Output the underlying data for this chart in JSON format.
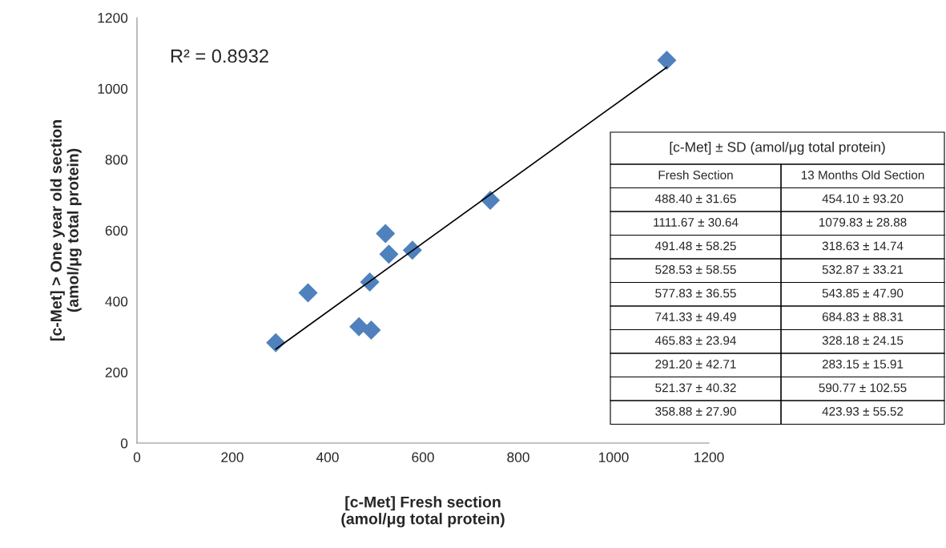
{
  "chart_data": {
    "type": "scatter",
    "xlabel": "[c-Met] Fresh section\n(amol/μg total protein)",
    "ylabel": "[c-Met] > One year old section\n(amol/μg total protein)",
    "xlim": [
      0,
      1200
    ],
    "xticks": [
      0,
      200,
      400,
      600,
      800,
      1000,
      1200
    ],
    "ylim": [
      0,
      1200
    ],
    "yticks": [
      0,
      200,
      400,
      600,
      800,
      1000,
      1200
    ],
    "grid": false,
    "series": [
      {
        "marker": "diamond",
        "color": "#4f81bd",
        "x": [
          488.4,
          1111.67,
          491.48,
          528.53,
          577.83,
          741.33,
          465.83,
          291.2,
          521.37,
          358.88
        ],
        "values": [
          454.1,
          1079.83,
          318.63,
          532.87,
          543.85,
          684.83,
          328.18,
          283.15,
          590.77,
          423.93
        ]
      },
      {
        "type": "line",
        "color": "#000000",
        "x": [
          291.2,
          1111.67
        ],
        "values": [
          265,
          1060
        ]
      }
    ],
    "annotations": [
      "R² = 0.8932",
      "[c-Met] ± SD (amol/μg total protein)",
      "Fresh Section",
      "13 Months Old Section",
      "488.40 ± 31.65",
      "454.10 ± 93.20",
      "1111.67 ± 30.64",
      "1079.83 ± 28.88",
      "491.48 ± 58.25",
      "318.63 ± 14.74",
      "528.53 ± 58.55",
      "532.87 ± 33.21",
      "577.83 ± 36.55",
      "543.85 ± 47.90",
      "741.33 ± 49.49",
      "684.83 ± 88.31",
      "465.83 ± 23.94",
      "328.18 ± 24.15",
      "291.20 ± 42.71",
      "283.15 ± 15.91",
      "521.37 ± 40.32",
      "590.77 ± 102.55",
      "358.88 ± 27.90",
      "423.93 ± 55.52"
    ]
  }
}
